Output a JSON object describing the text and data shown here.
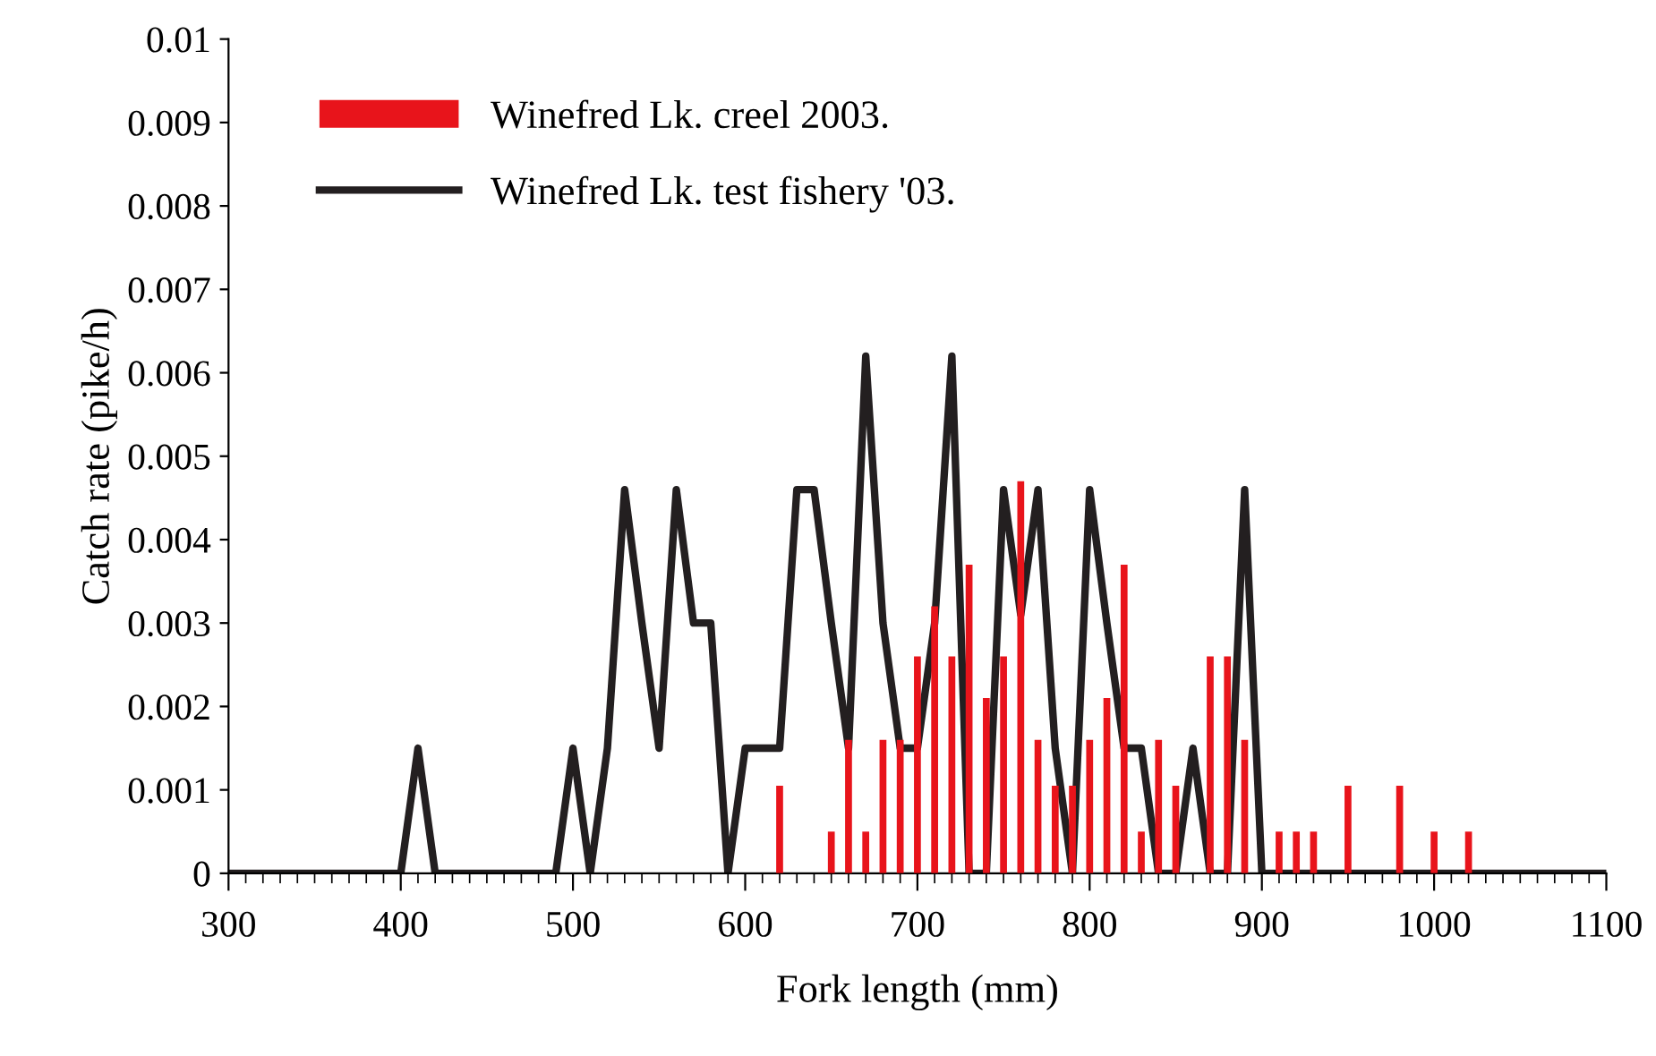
{
  "chart_data": {
    "type": "bar",
    "xlabel": "Fork length (mm)",
    "ylabel": "Catch rate (pike/h)",
    "xlim": [
      300,
      1100
    ],
    "xticks": [
      300,
      400,
      500,
      600,
      700,
      800,
      900,
      1000,
      1100
    ],
    "ylim": [
      0,
      0.01
    ],
    "yticks": [
      0,
      0.001,
      0.002,
      0.003,
      0.004,
      0.005,
      0.006,
      0.007,
      0.008,
      0.009,
      0.01
    ],
    "legend": "top left",
    "grid": false,
    "series": [
      {
        "name": "Winefred Lk. creel 2003.",
        "color": "#e8141b",
        "x": [
          620,
          650,
          660,
          670,
          680,
          690,
          700,
          710,
          720,
          730,
          740,
          750,
          760,
          770,
          780,
          790,
          800,
          810,
          820,
          830,
          840,
          850,
          870,
          880,
          890,
          910,
          920,
          930,
          950,
          980,
          1000,
          1020
        ],
        "values": [
          0.00105,
          0.0005,
          0.0016,
          0.0005,
          0.0016,
          0.0016,
          0.0026,
          0.0032,
          0.0026,
          0.0037,
          0.0021,
          0.0026,
          0.0047,
          0.0016,
          0.00105,
          0.00105,
          0.0016,
          0.0021,
          0.0037,
          0.0005,
          0.0016,
          0.00105,
          0.0026,
          0.0026,
          0.0016,
          0.0005,
          0.0005,
          0.0005,
          0.00105,
          0.00105,
          0.0005,
          0.0005
        ]
      },
      {
        "name": "Winefred Lk. test fishery '03.",
        "type": "line",
        "color": "#231f20",
        "x": [
          300,
          310,
          320,
          330,
          340,
          350,
          360,
          370,
          380,
          390,
          400,
          410,
          420,
          430,
          440,
          450,
          460,
          470,
          480,
          490,
          500,
          510,
          520,
          530,
          540,
          550,
          560,
          570,
          580,
          590,
          600,
          610,
          620,
          630,
          640,
          650,
          660,
          670,
          680,
          690,
          700,
          710,
          720,
          730,
          740,
          750,
          760,
          770,
          780,
          790,
          800,
          810,
          820,
          830,
          840,
          850,
          860,
          870,
          880,
          890,
          900,
          910,
          920,
          930,
          940,
          950,
          960,
          970,
          980,
          990,
          1000,
          1010,
          1020,
          1030,
          1040,
          1050,
          1060,
          1070,
          1080,
          1090,
          1100
        ],
        "values": [
          0,
          0,
          0,
          0,
          0,
          0,
          0,
          0,
          0,
          0,
          0,
          0.0015,
          0,
          0,
          0,
          0,
          0,
          0,
          0,
          0,
          0.0015,
          0,
          0.0015,
          0.0046,
          0.003,
          0.0015,
          0.0046,
          0.003,
          0.003,
          0,
          0.0015,
          0.0015,
          0.0015,
          0.0046,
          0.0046,
          0.003,
          0.0015,
          0.0062,
          0.003,
          0.0015,
          0.0015,
          0.003,
          0.0062,
          0,
          0,
          0.0046,
          0.0031,
          0.0046,
          0.0015,
          0,
          0.0046,
          0.003,
          0.0015,
          0.0015,
          0,
          0,
          0.0015,
          0,
          0,
          0.0046,
          0,
          0,
          0,
          0,
          0,
          0,
          0,
          0,
          0,
          0,
          0,
          0,
          0,
          0,
          0,
          0,
          0,
          0,
          0,
          0,
          0
        ]
      }
    ]
  }
}
